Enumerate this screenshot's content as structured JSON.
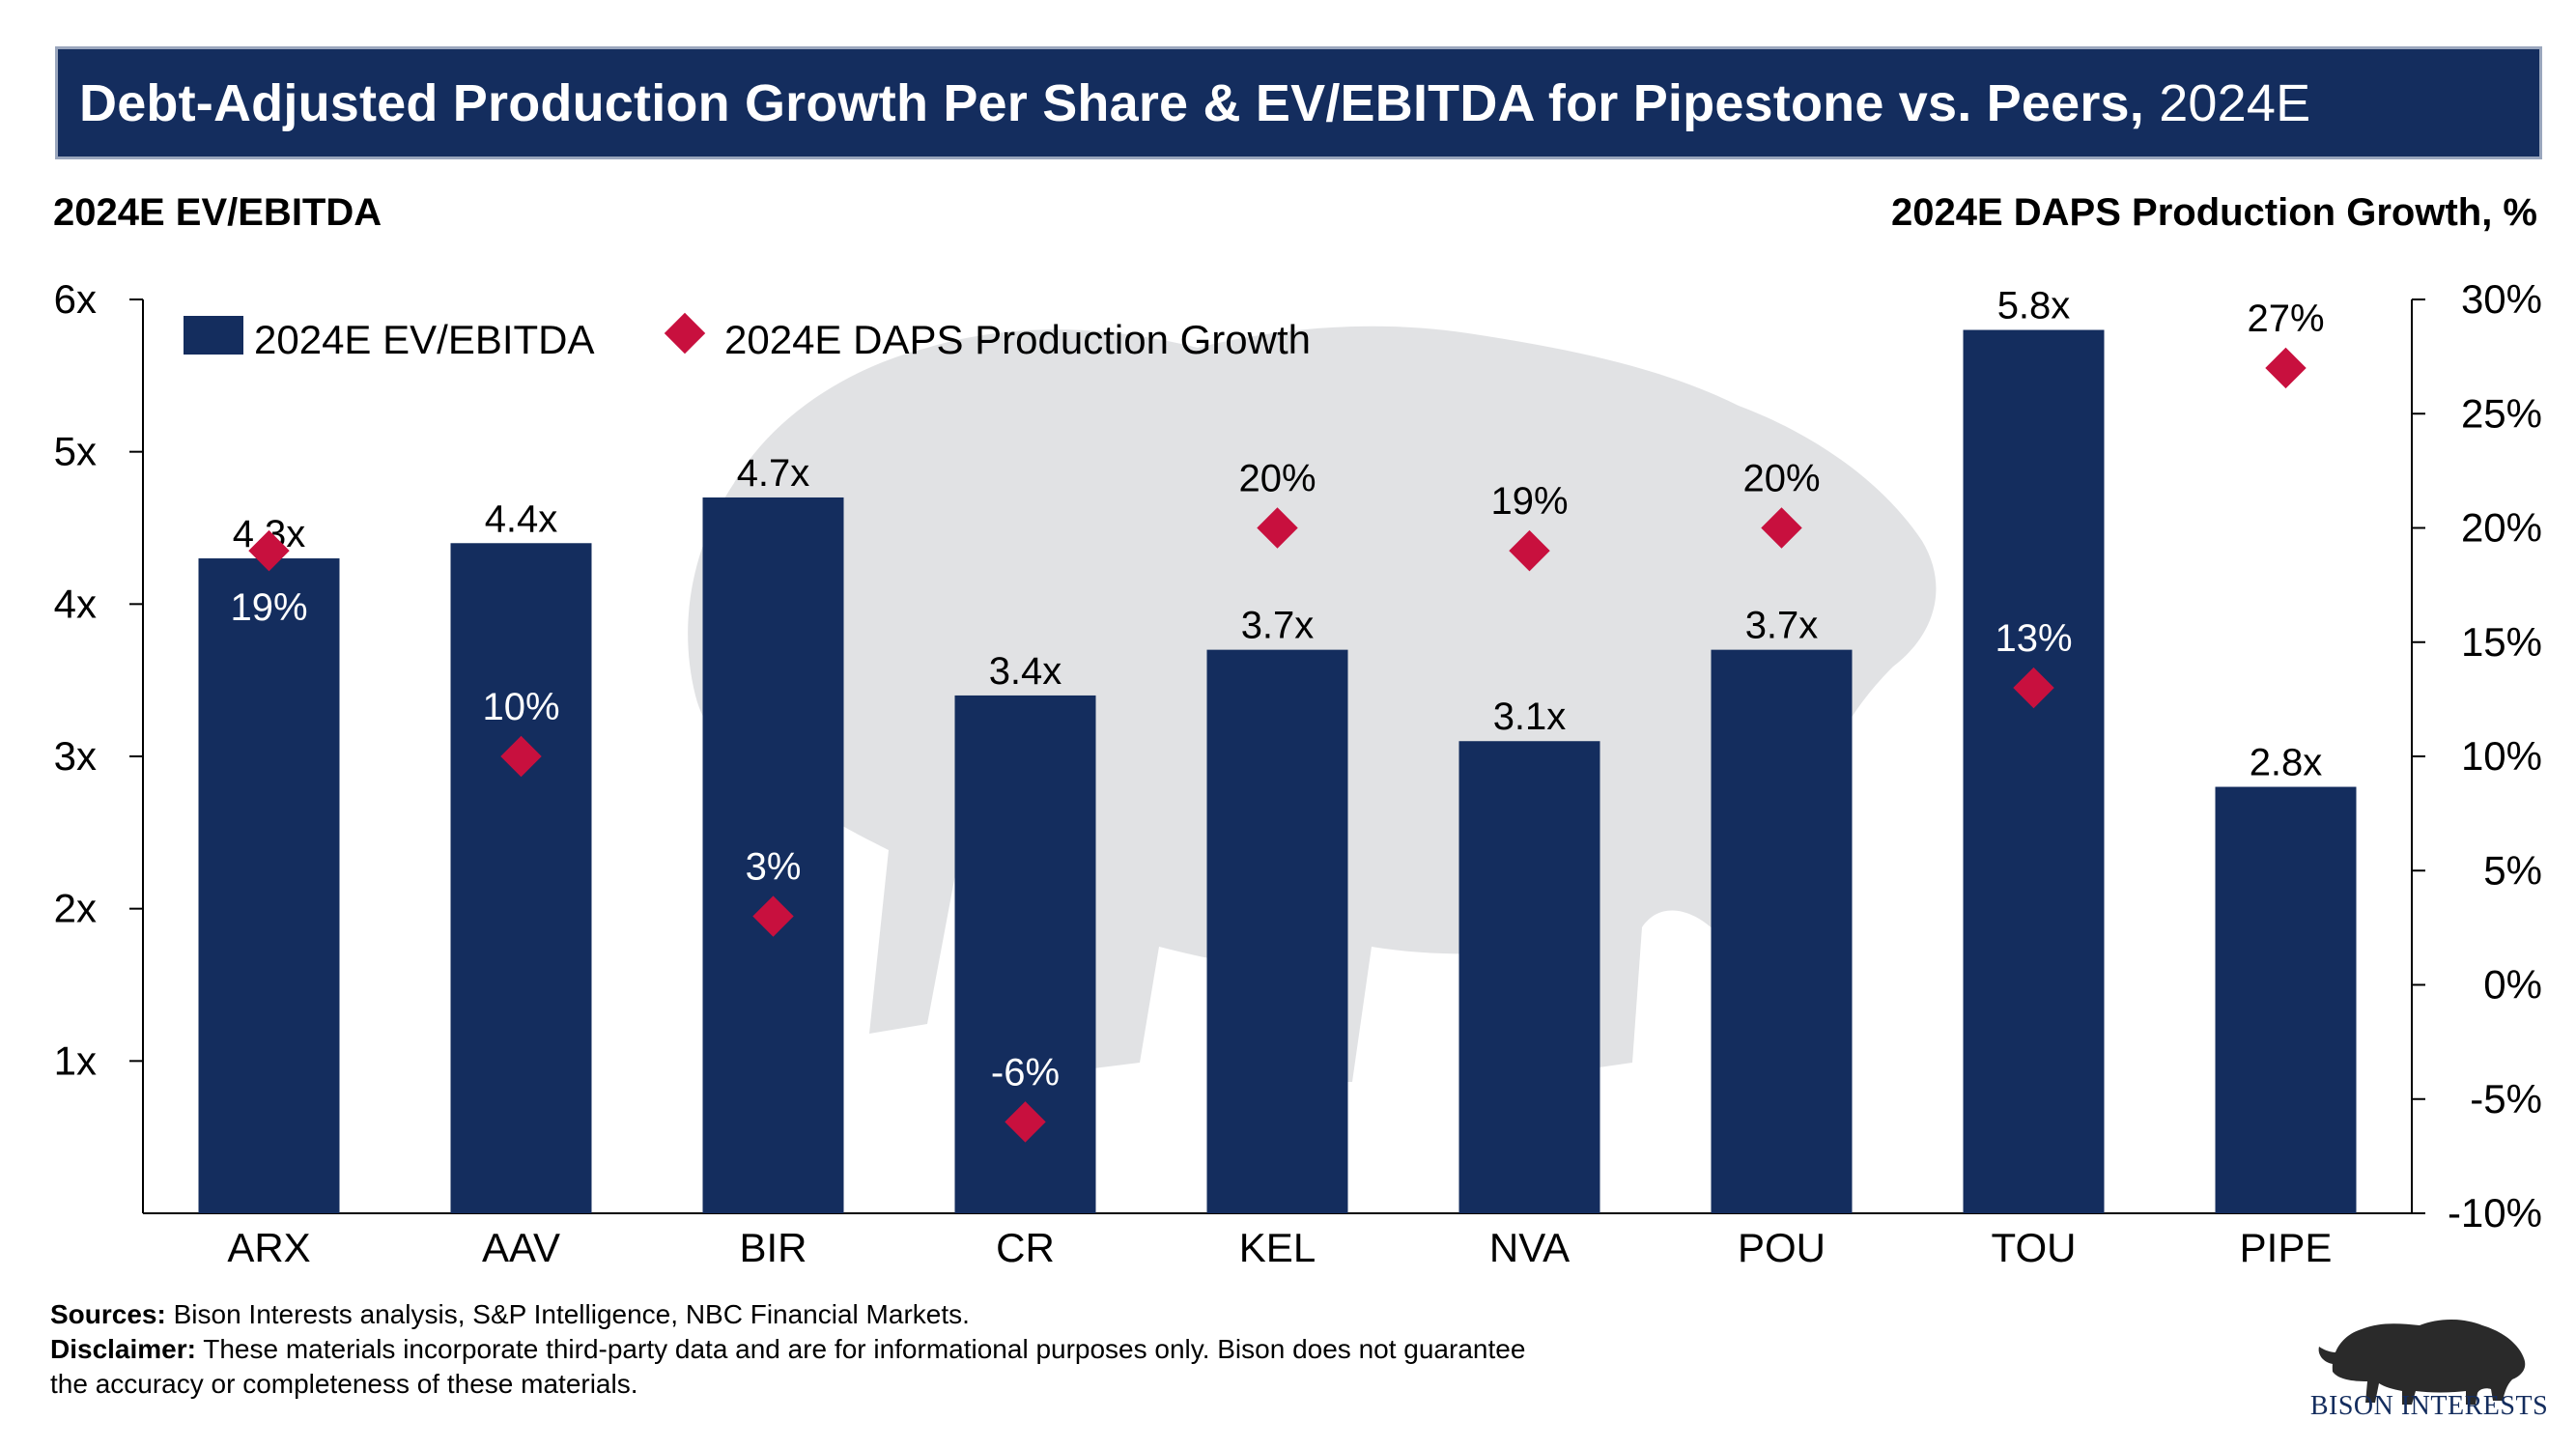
{
  "header": {
    "title_bold": "Debt-Adjusted Production Growth Per Share & EV/EBITDA for Pipestone vs. Peers,",
    "title_light": "2024E"
  },
  "axes": {
    "left_title": "2024E EV/EBITDA",
    "right_title": "2024E DAPS Production Growth, %"
  },
  "colors": {
    "bar": "#142d5e",
    "marker": "#c8103e",
    "title_bg": "#142d5e"
  },
  "chart_data": {
    "type": "bar",
    "categories": [
      "ARX",
      "AAV",
      "BIR",
      "CR",
      "KEL",
      "NVA",
      "POU",
      "TOU",
      "PIPE"
    ],
    "series": [
      {
        "name": "2024E EV/EBITDA",
        "kind": "bar",
        "axis": "left",
        "values": [
          4.3,
          4.4,
          4.7,
          3.4,
          3.7,
          3.1,
          3.7,
          5.8,
          2.8
        ],
        "labels": [
          "4.3x",
          "4.4x",
          "4.7x",
          "3.4x",
          "3.7x",
          "3.1x",
          "3.7x",
          "5.8x",
          "2.8x"
        ]
      },
      {
        "name": "2024E DAPS Production Growth",
        "kind": "marker",
        "axis": "right",
        "values": [
          19,
          10,
          3,
          -6,
          20,
          19,
          20,
          13,
          27
        ],
        "labels": [
          "19%",
          "10%",
          "3%",
          "-6%",
          "20%",
          "19%",
          "20%",
          "13%",
          "27%"
        ]
      }
    ],
    "ylim_left": [
      0,
      6
    ],
    "left_ticks": [
      "1x",
      "2x",
      "3x",
      "4x",
      "5x",
      "6x"
    ],
    "ylim_right": [
      -10,
      30
    ],
    "right_ticks": [
      "-10%",
      "-5%",
      "0%",
      "5%",
      "10%",
      "15%",
      "20%",
      "25%",
      "30%"
    ],
    "legend_position": "top-left",
    "grid": false
  },
  "footer": {
    "sources_label": "Sources:",
    "sources_text": " Bison Interests analysis, S&P Intelligence, NBC Financial Markets.",
    "disclaimer_label": "Disclaimer:",
    "disclaimer_text": " These materials incorporate third-party data and are for informational purposes only. Bison does not guarantee the accuracy or completeness of these materials."
  },
  "logo": {
    "text": "BISON INTERESTS",
    "icon": "bison-icon"
  }
}
